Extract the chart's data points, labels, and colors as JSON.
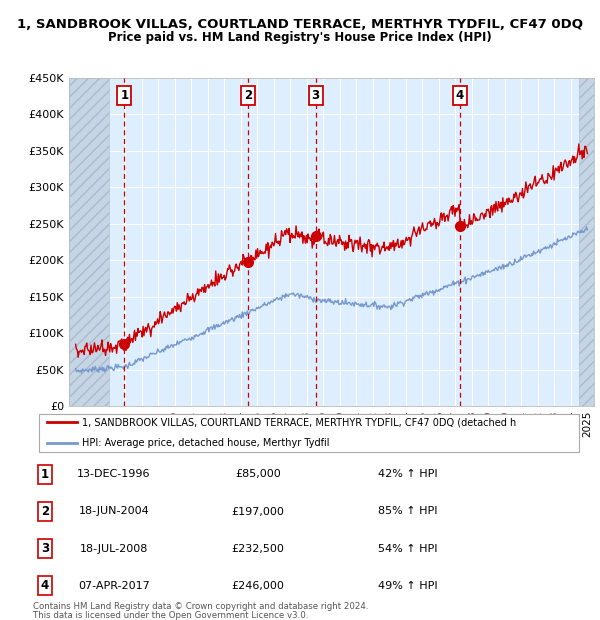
{
  "title": "1, SANDBROOK VILLAS, COURTLAND TERRACE, MERTHYR TYDFIL, CF47 0DQ",
  "subtitle": "Price paid vs. HM Land Registry's House Price Index (HPI)",
  "ylim": [
    0,
    450000
  ],
  "yticks": [
    0,
    50000,
    100000,
    150000,
    200000,
    250000,
    300000,
    350000,
    400000,
    450000
  ],
  "ytick_labels": [
    "£0",
    "£50K",
    "£100K",
    "£150K",
    "£200K",
    "£250K",
    "£300K",
    "£350K",
    "£400K",
    "£450K"
  ],
  "xlim_start": 1993.6,
  "xlim_end": 2025.4,
  "hatch_left_end": 1996.0,
  "hatch_right_start": 2024.5,
  "sales": [
    {
      "num": 1,
      "year": 1996.95,
      "price": 85000,
      "date": "13-DEC-1996",
      "pct": "42%",
      "label": "£85,000"
    },
    {
      "num": 2,
      "year": 2004.46,
      "price": 197000,
      "date": "18-JUN-2004",
      "label": "£197,000",
      "pct": "85%"
    },
    {
      "num": 3,
      "year": 2008.54,
      "price": 232500,
      "date": "18-JUL-2008",
      "label": "£232,500",
      "pct": "54%"
    },
    {
      "num": 4,
      "year": 2017.27,
      "price": 246000,
      "date": "07-APR-2017",
      "label": "£246,000",
      "pct": "49%"
    }
  ],
  "legend_line1": "1, SANDBROOK VILLAS, COURTLAND TERRACE, MERTHYR TYDFIL, CF47 0DQ (detached h",
  "legend_line2": "HPI: Average price, detached house, Merthyr Tydfil",
  "footer1": "Contains HM Land Registry data © Crown copyright and database right 2024.",
  "footer2": "This data is licensed under the Open Government Licence v3.0.",
  "red_color": "#cc0000",
  "blue_color": "#7799cc",
  "bg_color": "#ddeeff",
  "hatch_face": "#c5d5e5",
  "hatch_edge": "#aabbcc"
}
